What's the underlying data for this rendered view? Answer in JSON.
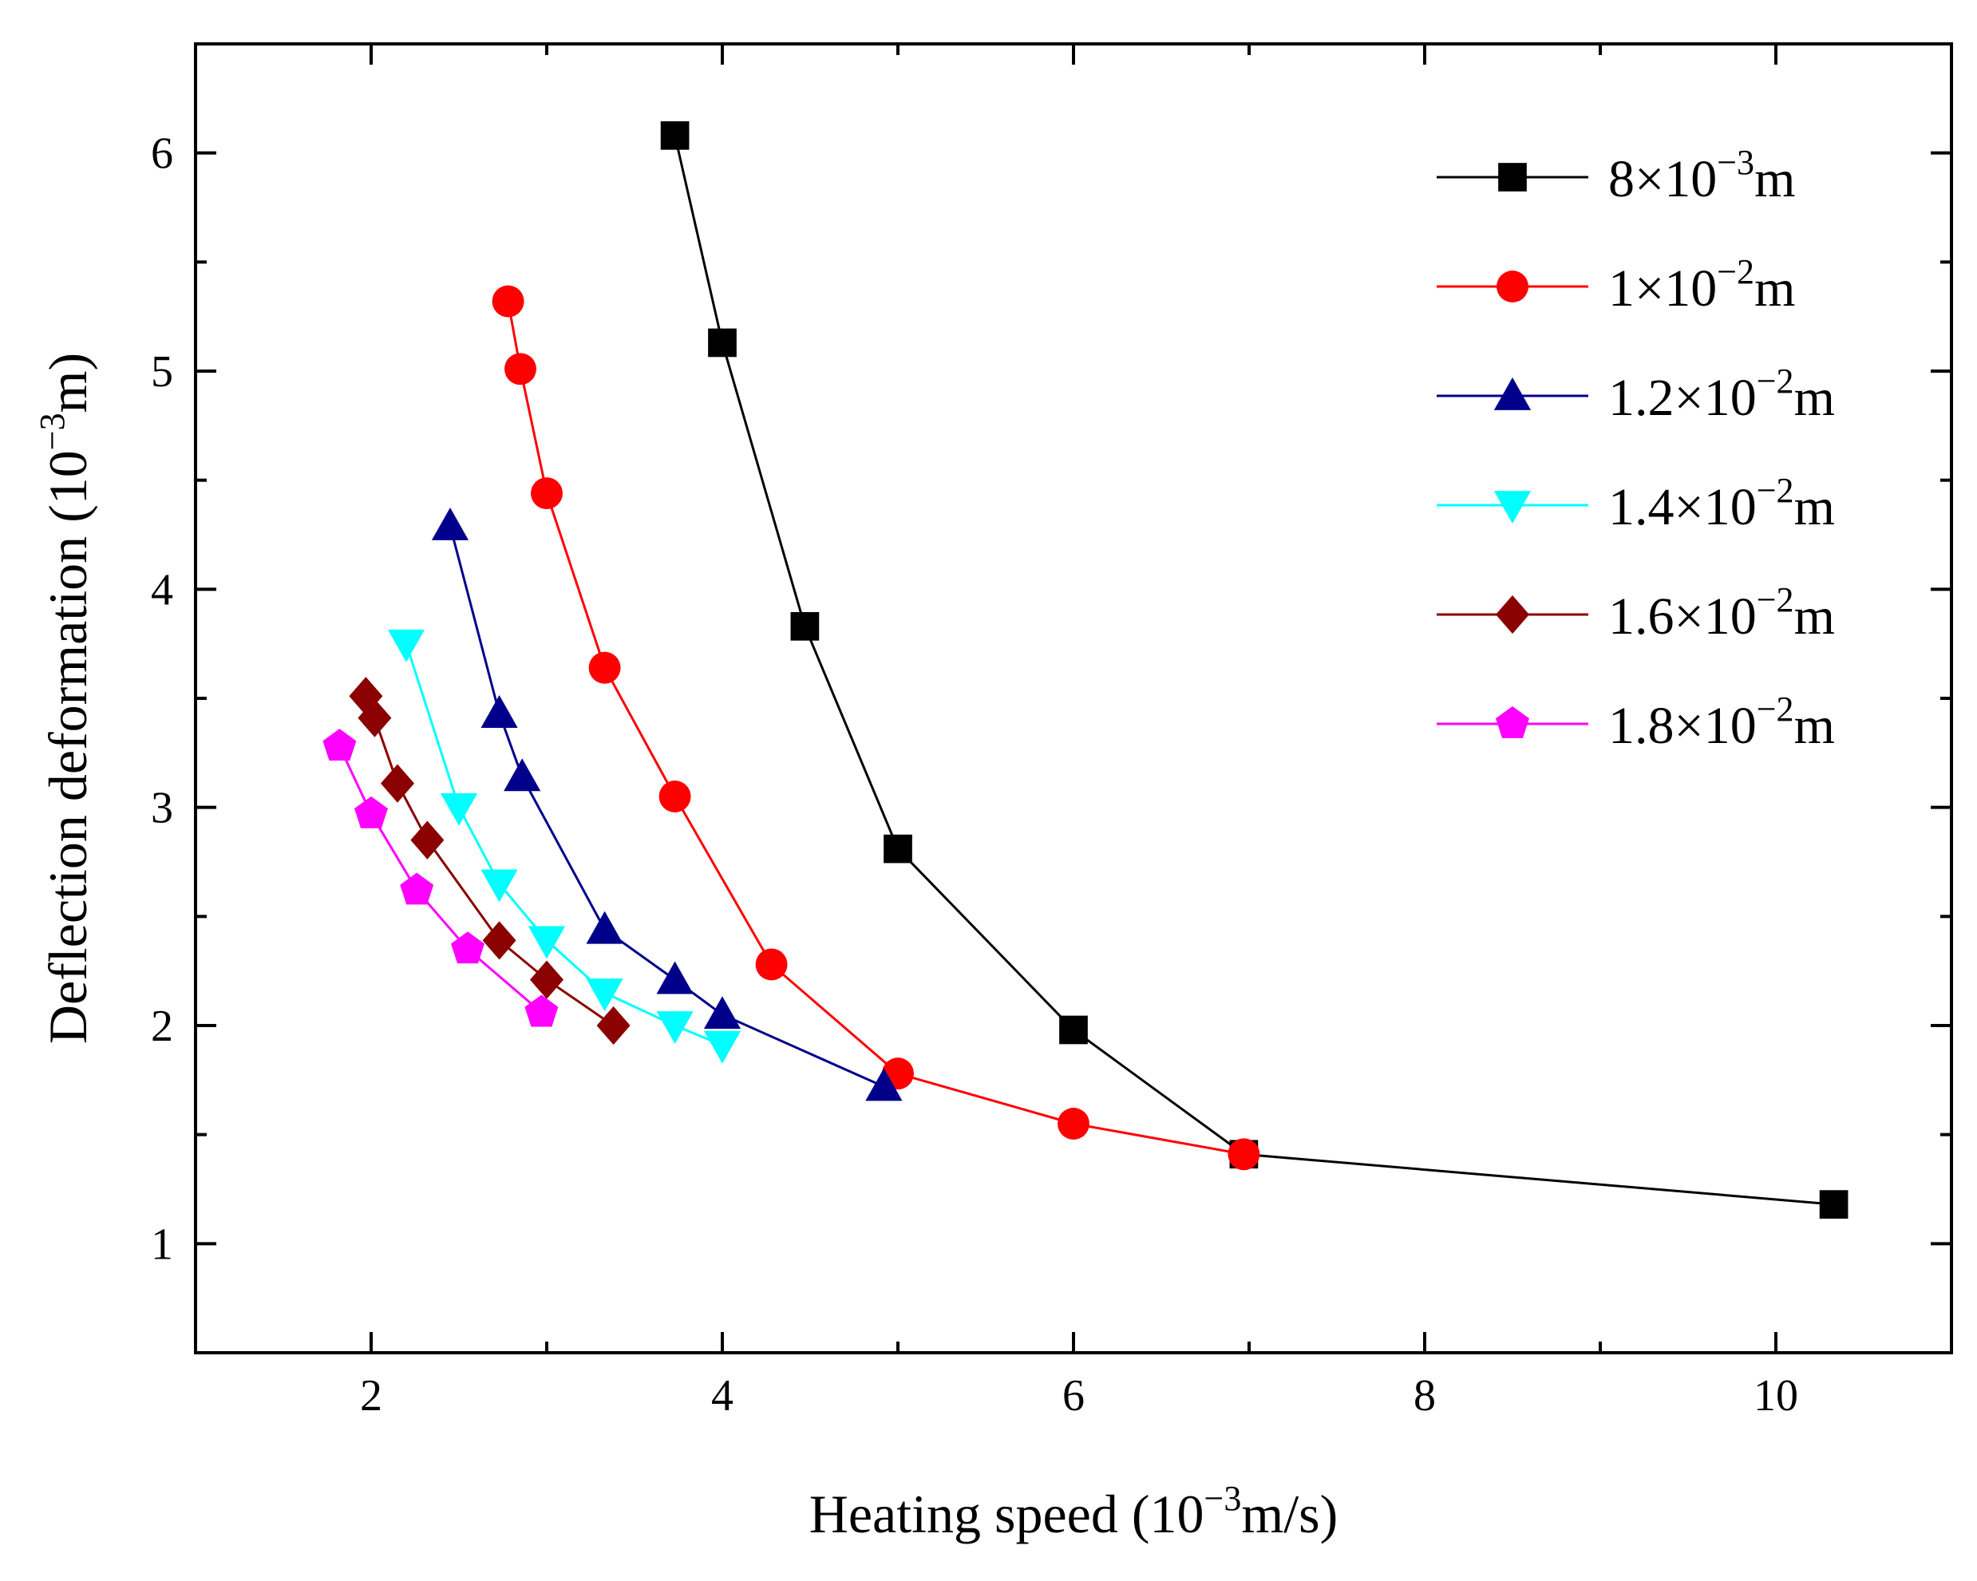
{
  "chart_data": {
    "type": "line",
    "title": "",
    "xlabel": {
      "prefix": "Heating speed (10",
      "exp": "−3",
      "suffix": "m/s)"
    },
    "ylabel": {
      "prefix": "Deflection deformation (10",
      "exp": "−3",
      "suffix": "m)"
    },
    "xlim": [
      1,
      11
    ],
    "ylim": [
      0.5,
      6.5
    ],
    "x_ticks": [
      2,
      4,
      6,
      8,
      10
    ],
    "x_tick_labels": [
      "2",
      "4",
      "6",
      "8",
      "10"
    ],
    "x_minor_ticks": [
      3,
      5,
      7,
      9
    ],
    "y_ticks": [
      1,
      2,
      3,
      4,
      5,
      6
    ],
    "y_tick_labels": [
      "1",
      "2",
      "3",
      "4",
      "5",
      "6"
    ],
    "y_minor_ticks": [
      1.5,
      2.5,
      3.5,
      4.5,
      5.5
    ],
    "grid": false,
    "legend_position": "top-right",
    "series": [
      {
        "name": "8×10−3m",
        "mantissa": "8",
        "exp": "−3",
        "unit": "m",
        "color": "#000000",
        "marker": "square",
        "x": [
          3.73,
          4.0,
          4.47,
          5.0,
          6.0,
          6.97,
          10.33
        ],
        "y": [
          6.08,
          5.13,
          3.83,
          2.81,
          1.98,
          1.41,
          1.18
        ]
      },
      {
        "name": "1×10−2m",
        "mantissa": "1",
        "exp": "−2",
        "unit": "m",
        "color": "#ff0000",
        "marker": "circle",
        "x": [
          2.78,
          2.85,
          3.0,
          3.33,
          3.73,
          4.28,
          5.0,
          6.0,
          6.97
        ],
        "y": [
          5.32,
          5.01,
          4.44,
          3.64,
          3.05,
          2.28,
          1.78,
          1.55,
          1.41
        ]
      },
      {
        "name": "1.2×10−2m",
        "mantissa": "1.2",
        "exp": "−2",
        "unit": "m",
        "color": "#00008b",
        "marker": "triangle-up",
        "x": [
          2.45,
          2.73,
          2.86,
          3.33,
          3.73,
          4.0,
          4.92
        ],
        "y": [
          4.29,
          3.43,
          3.14,
          2.44,
          2.21,
          2.05,
          1.72
        ]
      },
      {
        "name": "1.4×10−2m",
        "mantissa": "1.4",
        "exp": "−2",
        "unit": "m",
        "color": "#00ffff",
        "marker": "triangle-down",
        "x": [
          2.2,
          2.5,
          2.73,
          3.0,
          3.33,
          3.73,
          4.0
        ],
        "y": [
          3.75,
          3.0,
          2.65,
          2.39,
          2.15,
          2.0,
          1.91
        ]
      },
      {
        "name": "1.6×10−2m",
        "mantissa": "1.6",
        "exp": "−2",
        "unit": "m",
        "color": "#8b0000",
        "marker": "diamond",
        "x": [
          1.97,
          2.02,
          2.15,
          2.32,
          2.73,
          3.0,
          3.38
        ],
        "y": [
          3.51,
          3.41,
          3.11,
          2.85,
          2.39,
          2.21,
          2.0
        ]
      },
      {
        "name": "1.8×10−2m",
        "mantissa": "1.8",
        "exp": "−2",
        "unit": "m",
        "color": "#ff00ff",
        "marker": "pentagon",
        "x": [
          1.82,
          2.0,
          2.26,
          2.55,
          2.97
        ],
        "y": [
          3.28,
          2.97,
          2.62,
          2.35,
          2.06
        ]
      }
    ]
  }
}
